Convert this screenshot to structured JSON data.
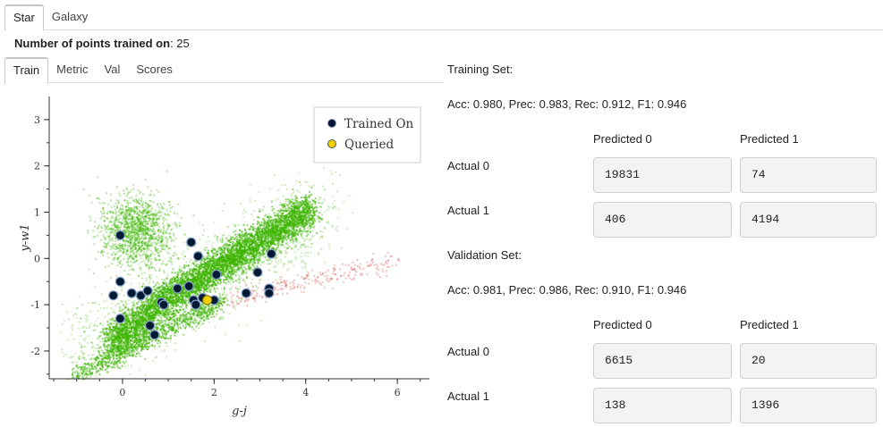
{
  "top_tabs": [
    "Star",
    "Galaxy"
  ],
  "active_top_tab": "Star",
  "points_trained": {
    "label": "Number of points trained on",
    "value": "25"
  },
  "sub_tabs": [
    "Train",
    "Metric",
    "Val",
    "Scores"
  ],
  "active_sub_tab": "Train",
  "training": {
    "title": "Training Set:",
    "metrics": "Acc: 0.980, Prec: 0.983, Rec: 0.912, F1: 0.946",
    "col_headers": [
      "Predicted 0",
      "Predicted 1"
    ],
    "row_headers": [
      "Actual 0",
      "Actual 1"
    ],
    "matrix": [
      [
        "19831",
        "74"
      ],
      [
        "406",
        "4194"
      ]
    ]
  },
  "validation": {
    "title": "Validation Set:",
    "metrics": "Acc: 0.981, Prec: 0.986, Rec: 0.910, F1: 0.946",
    "col_headers": [
      "Predicted 0",
      "Predicted 1"
    ],
    "row_headers": [
      "Actual 0",
      "Actual 1"
    ],
    "matrix": [
      [
        "6615",
        "20"
      ],
      [
        "138",
        "1396"
      ]
    ]
  },
  "chart_data": {
    "type": "scatter",
    "xlabel": "g-j",
    "ylabel": "y-w1",
    "xlim": [
      -1.6,
      6.7
    ],
    "ylim": [
      -2.6,
      3.5
    ],
    "x_ticks": [
      0,
      2,
      4,
      6
    ],
    "y_ticks": [
      -2,
      -1,
      0,
      1,
      2,
      3
    ],
    "legend": {
      "placement": "top-right",
      "entries": [
        "Trained On",
        "Queried"
      ]
    },
    "colors": {
      "class0": "#3cb400",
      "class1": "#d9534f",
      "trained_on": "#001a33",
      "queried": "#f5d000"
    },
    "series": [
      {
        "name": "Trained On",
        "points": [
          [
            -0.05,
            0.5
          ],
          [
            -0.2,
            -0.8
          ],
          [
            -0.05,
            -0.5
          ],
          [
            -0.05,
            -1.3
          ],
          [
            0.4,
            -0.8
          ],
          [
            0.55,
            -0.7
          ],
          [
            0.6,
            -1.45
          ],
          [
            0.7,
            -1.65
          ],
          [
            0.85,
            -0.95
          ],
          [
            0.9,
            -1.0
          ],
          [
            1.2,
            -0.65
          ],
          [
            1.5,
            0.35
          ],
          [
            1.45,
            -0.6
          ],
          [
            1.55,
            -0.9
          ],
          [
            1.6,
            -1.0
          ],
          [
            1.65,
            0.05
          ],
          [
            2.0,
            -0.9
          ],
          [
            2.05,
            -0.35
          ],
          [
            2.7,
            -0.75
          ],
          [
            2.95,
            -0.3
          ],
          [
            3.2,
            -0.65
          ],
          [
            3.25,
            0.1
          ],
          [
            3.2,
            -0.75
          ],
          [
            1.75,
            -0.85
          ],
          [
            0.2,
            -0.75
          ]
        ]
      },
      {
        "name": "Queried",
        "points": [
          [
            1.85,
            -0.9
          ]
        ]
      }
    ]
  }
}
